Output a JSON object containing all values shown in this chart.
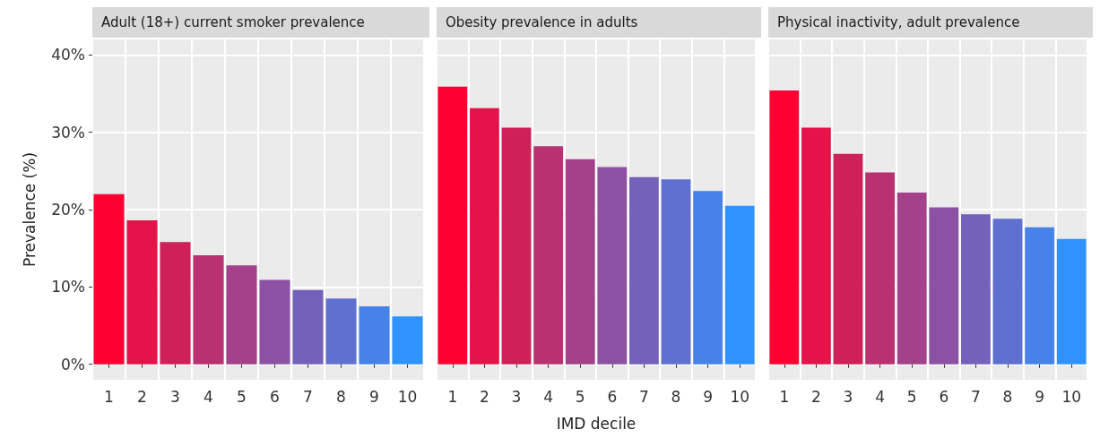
{
  "chart_data": [
    {
      "type": "bar",
      "title": "Adult (18+) current smoker prevalence",
      "ylabel": "Prevalence (%)",
      "categories": [
        "1",
        "2",
        "3",
        "4",
        "5",
        "6",
        "7",
        "8",
        "9",
        "10"
      ],
      "values": [
        22.0,
        18.6,
        15.8,
        14.1,
        12.8,
        10.9,
        9.6,
        8.5,
        7.5,
        6.2
      ],
      "colors": [
        "#ff0032",
        "#e6134a",
        "#d02058",
        "#b93170",
        "#a3418b",
        "#8d51a3",
        "#7461b9",
        "#5f70d1",
        "#4682e8",
        "#2e93ff"
      ],
      "ylim": [
        -2,
        42
      ],
      "yticks": [
        {
          "value": 0,
          "label": "0%"
        },
        {
          "value": 10,
          "label": "10%"
        },
        {
          "value": 20,
          "label": "20%"
        },
        {
          "value": 30,
          "label": "30%"
        },
        {
          "value": 40,
          "label": "40%"
        }
      ],
      "grid": true
    },
    {
      "type": "bar",
      "title": "Obesity prevalence in adults",
      "xlabel": "IMD decile",
      "categories": [
        "1",
        "2",
        "3",
        "4",
        "5",
        "6",
        "7",
        "8",
        "9",
        "10"
      ],
      "values": [
        35.9,
        33.1,
        30.6,
        28.2,
        26.5,
        25.5,
        24.2,
        23.9,
        22.4,
        20.5
      ],
      "colors": [
        "#ff0032",
        "#e6134a",
        "#d02058",
        "#b93170",
        "#a3418b",
        "#8d51a3",
        "#7461b9",
        "#5f70d1",
        "#4682e8",
        "#2e93ff"
      ],
      "ylim": [
        -2,
        42
      ],
      "yticks": [
        {
          "value": 0,
          "label": null
        },
        {
          "value": 10,
          "label": null
        },
        {
          "value": 20,
          "label": null
        },
        {
          "value": 30,
          "label": null
        },
        {
          "value": 40,
          "label": null
        }
      ],
      "grid": true,
      "tick_labels": "x"
    },
    {
      "type": "bar",
      "title": "Physical inactivity, adult prevalence",
      "categories": [
        "1",
        "2",
        "3",
        "4",
        "5",
        "6",
        "7",
        "8",
        "9",
        "10"
      ],
      "values": [
        35.4,
        30.6,
        27.2,
        24.8,
        22.2,
        20.3,
        19.4,
        18.8,
        17.7,
        16.2
      ],
      "colors": [
        "#ff0032",
        "#e6134a",
        "#d02058",
        "#b93170",
        "#a3418b",
        "#8d51a3",
        "#7461b9",
        "#5f70d1",
        "#4682e8",
        "#2e93ff"
      ],
      "ylim": [
        -2,
        42
      ],
      "yticks": [
        {
          "value": 0,
          "label": null
        },
        {
          "value": 10,
          "label": null
        },
        {
          "value": 20,
          "label": null
        },
        {
          "value": 30,
          "label": null
        },
        {
          "value": 40,
          "label": null
        }
      ],
      "grid": true,
      "tick_labels": "x"
    }
  ]
}
